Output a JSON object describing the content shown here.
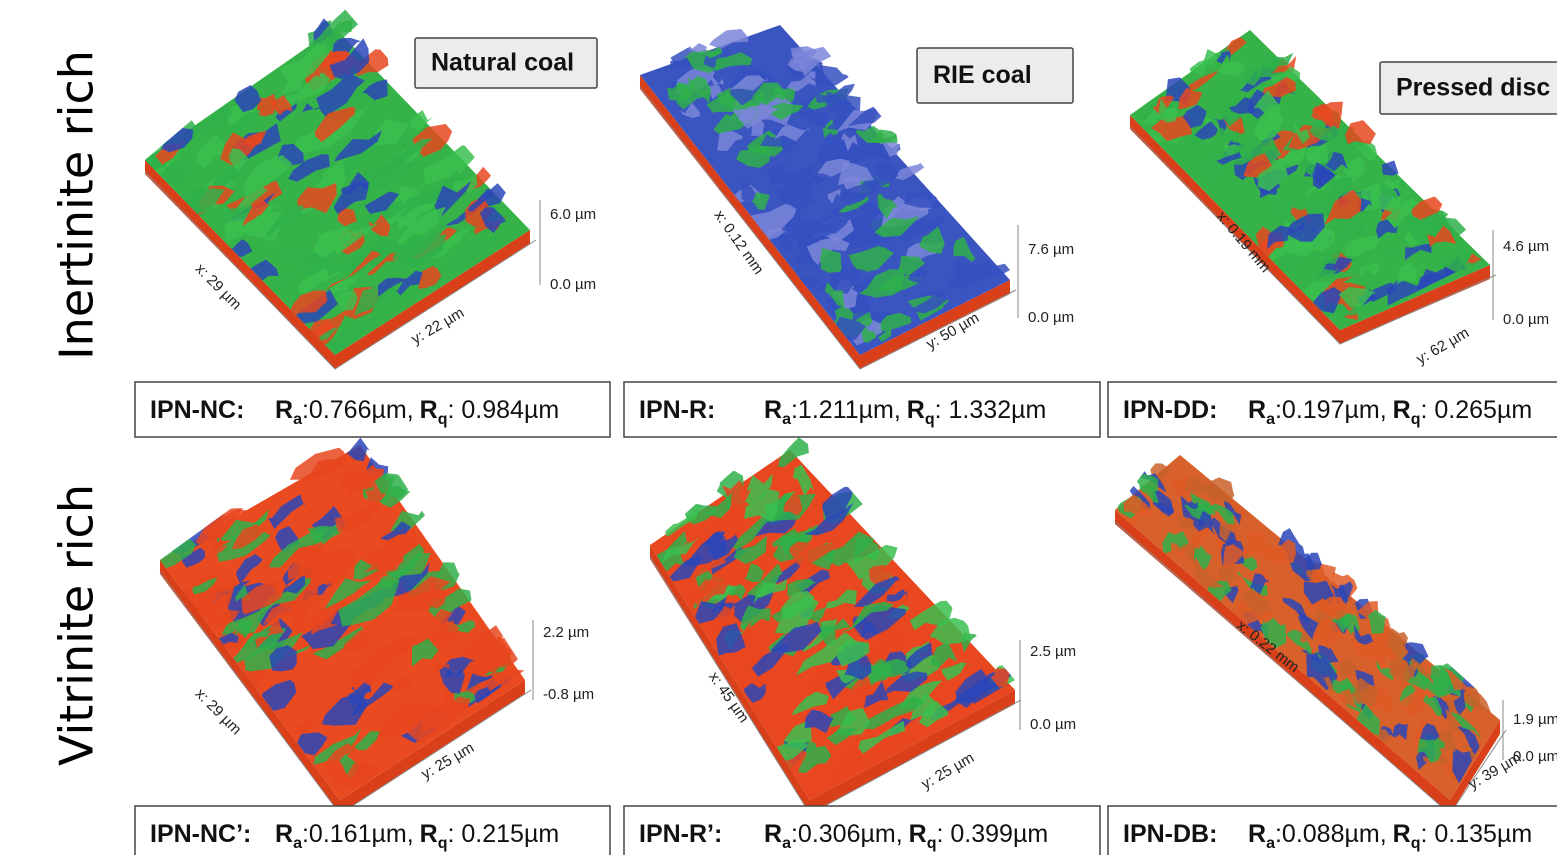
{
  "symbols": {
    "roughness": "R",
    "average": "a",
    "rms": "q"
  },
  "rows": [
    {
      "label": "Inertinite rich",
      "panels": [
        {
          "tag": "Natural coal",
          "x_axis": "x: 29 µm",
          "y_axis": "y: 22 µm",
          "z_max": "6.0 µm",
          "z_min": "0.0 µm",
          "sample": "IPN-NC:",
          "ra": ":0.766µm,",
          "rq": ": 0.984µm"
        },
        {
          "tag": "RIE coal",
          "x_axis": "x: 0.12 mm",
          "y_axis": "y: 50 µm",
          "z_max": "7.6 µm",
          "z_min": "0.0 µm",
          "sample": "IPN-R:",
          "ra": ":1.211µm,",
          "rq": ": 1.332µm"
        },
        {
          "tag": "Pressed disc",
          "x_axis": "x: 0.19 mm",
          "y_axis": "y: 62 µm",
          "z_max": "4.6 µm",
          "z_min": "0.0 µm",
          "sample": "IPN-DD:",
          "ra": ":0.197µm,",
          "rq": ": 0.265µm"
        }
      ]
    },
    {
      "label": "Vitrinite rich",
      "panels": [
        {
          "x_axis": "x: 29 µm",
          "y_axis": "y: 25 µm",
          "z_max": "2.2 µm",
          "z_min": "-0.8 µm",
          "sample": "IPN-NC’:",
          "ra": ":0.161µm,",
          "rq": ": 0.215µm"
        },
        {
          "x_axis": "x: 45 µm",
          "y_axis": "y: 25 µm",
          "z_max": "2.5 µm",
          "z_min": "0.0 µm",
          "sample": "IPN-R’:",
          "ra": ":0.306µm,",
          "rq": ": 0.399µm"
        },
        {
          "x_axis": "x: 0.22 mm",
          "y_axis": "y: 39 µm",
          "z_max": "1.9 µm",
          "z_min": "0.0 µm",
          "sample": "IPN-DB:",
          "ra": ":0.088µm,",
          "rq": ": 0.135µm"
        }
      ]
    }
  ]
}
